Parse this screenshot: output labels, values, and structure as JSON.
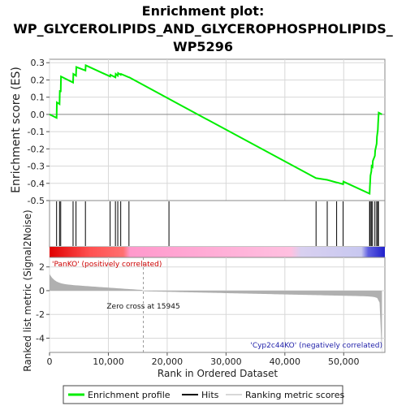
{
  "chart_data": {
    "type": "line",
    "title_lines": [
      "Enrichment plot:",
      "WP_GLYCEROLIPIDS_AND_GLYCEROPHOSPHOLIPIDS_",
      "WP5296"
    ],
    "xlabel": "Rank in Ordered Dataset",
    "ylabel_top": "Enrichment score (ES)",
    "ylabel_bottom": "Ranked list metric (Signal2Noise)",
    "xlim": [
      0,
      57000
    ],
    "x_ticks": [
      0,
      10000,
      20000,
      30000,
      40000,
      50000
    ],
    "x_tick_labels": [
      "0",
      "10,000",
      "20,000",
      "30,000",
      "40,000",
      "50,000"
    ],
    "es_ylim": [
      -0.5,
      0.32
    ],
    "es_ticks": [
      0.3,
      0.2,
      0.1,
      0.0,
      -0.1,
      -0.2,
      -0.3,
      -0.4,
      -0.5
    ],
    "es_tick_labels": [
      "0.3",
      "0.2",
      "0.1",
      "0.0",
      "-0.1",
      "-0.2",
      "-0.3",
      "-0.4",
      "-0.5"
    ],
    "metric_ylim": [
      -5.2,
      2.8
    ],
    "metric_ticks": [
      2,
      0,
      -2,
      -4
    ],
    "metric_tick_labels": [
      "2",
      "0",
      "-2",
      "-4"
    ],
    "hits": [
      1200,
      1700,
      1900,
      4000,
      4500,
      6100,
      10300,
      11200,
      11600,
      12100,
      13500,
      20300,
      45300,
      47200,
      48800,
      49900,
      54400,
      54500,
      54700,
      54900,
      55300,
      55600,
      55800,
      55900
    ],
    "es_points": [
      [
        0,
        0.0
      ],
      [
        1200,
        -0.02
      ],
      [
        1250,
        0.07
      ],
      [
        1700,
        0.06
      ],
      [
        1750,
        0.14
      ],
      [
        1900,
        0.13
      ],
      [
        1950,
        0.22
      ],
      [
        4000,
        0.185
      ],
      [
        4050,
        0.235
      ],
      [
        4500,
        0.225
      ],
      [
        4550,
        0.275
      ],
      [
        6100,
        0.255
      ],
      [
        6150,
        0.285
      ],
      [
        10300,
        0.22
      ],
      [
        10350,
        0.23
      ],
      [
        11200,
        0.215
      ],
      [
        11250,
        0.235
      ],
      [
        11600,
        0.225
      ],
      [
        11650,
        0.24
      ],
      [
        12100,
        0.23
      ],
      [
        12150,
        0.235
      ],
      [
        13500,
        0.215
      ],
      [
        13550,
        0.215
      ],
      [
        20300,
        0.09
      ],
      [
        45300,
        -0.37
      ],
      [
        47200,
        -0.38
      ],
      [
        48800,
        -0.395
      ],
      [
        48850,
        -0.395
      ],
      [
        49900,
        -0.405
      ],
      [
        49950,
        -0.39
      ],
      [
        54400,
        -0.46
      ],
      [
        54450,
        -0.42
      ],
      [
        54500,
        -0.39
      ],
      [
        54550,
        -0.355
      ],
      [
        54700,
        -0.33
      ],
      [
        54750,
        -0.3
      ],
      [
        54900,
        -0.305
      ],
      [
        54950,
        -0.27
      ],
      [
        55300,
        -0.24
      ],
      [
        55350,
        -0.21
      ],
      [
        55600,
        -0.17
      ],
      [
        55650,
        -0.13
      ],
      [
        55800,
        -0.09
      ],
      [
        55850,
        -0.05
      ],
      [
        55900,
        -0.02
      ],
      [
        55950,
        0.01
      ],
      [
        56500,
        0.0
      ]
    ],
    "zero_cross": 15945,
    "zero_cross_label": "Zero cross at 15945",
    "pos_label": "'PanKO' (positively correlated)",
    "neg_label": "'Cyp2c44KO' (negatively correlated)",
    "legend": [
      "Enrichment profile",
      "Hits",
      "Ranking metric scores"
    ],
    "colors": {
      "es_line": "#00ee00",
      "hit": "#000000",
      "metric_fill": "#b0b0b0",
      "pos_text": "#cc0000",
      "neg_text": "#2222aa",
      "grid": "#d8d8d8",
      "dashed": "#999999"
    }
  }
}
